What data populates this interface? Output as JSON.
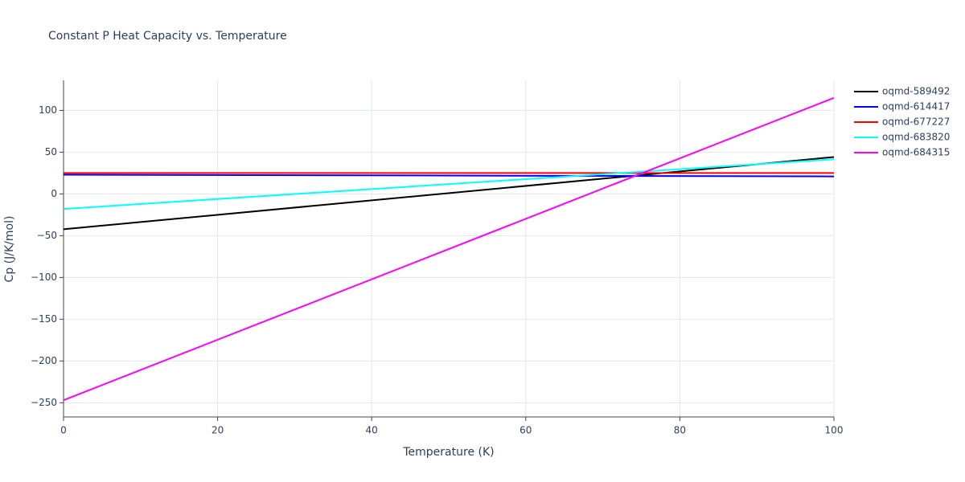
{
  "chart_data": {
    "type": "line",
    "title": "Constant P Heat Capacity vs. Temperature",
    "x_label": "Temperature (K)",
    "y_label": "Cp (J/K/mol)",
    "xlim": [
      0,
      100
    ],
    "xticks": [
      0,
      20,
      40,
      60,
      80,
      100
    ],
    "ylim": [
      -267,
      136
    ],
    "yticks": [
      {
        "value": -250,
        "label": "−250"
      },
      {
        "value": -200,
        "label": "−200"
      },
      {
        "value": -150,
        "label": "−150"
      },
      {
        "value": -100,
        "label": "−100"
      },
      {
        "value": -50,
        "label": "−50"
      },
      0,
      50,
      100
    ],
    "grid": true,
    "legend": "right",
    "x": [
      0,
      100
    ],
    "series": [
      {
        "name": "oqmd-589492",
        "color": "#000000",
        "values": [
          -42.3,
          44.2
        ]
      },
      {
        "name": "oqmd-614417",
        "color": "#0000ff",
        "values": [
          23,
          21
        ]
      },
      {
        "name": "oqmd-677227",
        "color": "#ff0000",
        "values": [
          25,
          25
        ]
      },
      {
        "name": "oqmd-683820",
        "color": "#00ffff",
        "values": [
          -18,
          41.5
        ]
      },
      {
        "name": "oqmd-684315",
        "color": "#ff00ff",
        "values": [
          -247,
          115
        ]
      }
    ]
  }
}
